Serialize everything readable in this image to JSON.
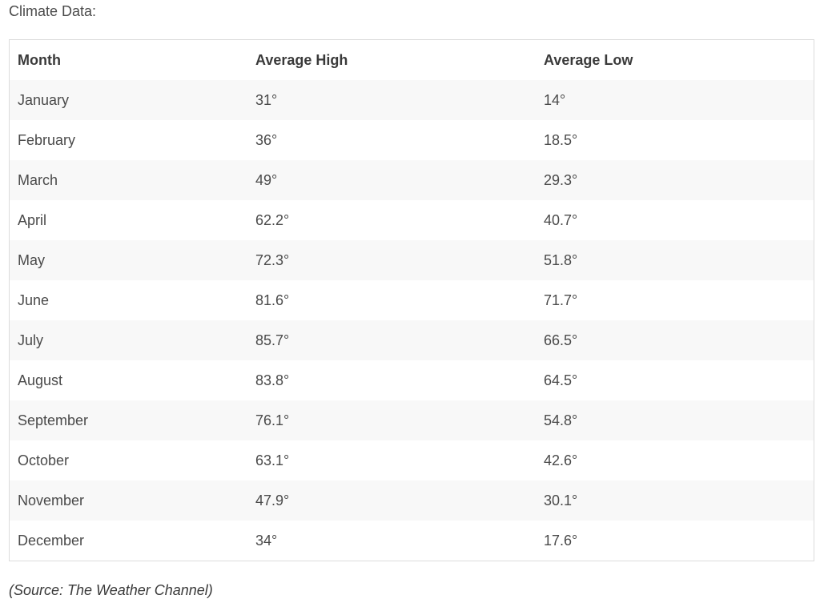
{
  "intro_text": "Climate Data:",
  "table": {
    "headers": [
      "Month",
      "Average High",
      "Average Low"
    ],
    "rows": [
      [
        "January",
        "31°",
        "14°"
      ],
      [
        "February",
        "36°",
        "18.5°"
      ],
      [
        "March",
        "49°",
        "29.3°"
      ],
      [
        "April",
        "62.2°",
        "40.7°"
      ],
      [
        "May",
        "72.3°",
        "51.8°"
      ],
      [
        "June",
        "81.6°",
        "71.7°"
      ],
      [
        "July",
        "85.7°",
        "66.5°"
      ],
      [
        "August",
        "83.8°",
        "64.5°"
      ],
      [
        "September",
        "76.1°",
        "54.8°"
      ],
      [
        "October",
        "63.1°",
        "42.6°"
      ],
      [
        "November",
        "47.9°",
        "30.1°"
      ],
      [
        "December",
        "34°",
        "17.6°"
      ]
    ]
  },
  "source_text": "(Source: The Weather Channel)",
  "colors": {
    "text": "#4a4a4a",
    "header_text": "#3a3a3a",
    "stripe": "#f8f8f8",
    "border": "#dcdcdc"
  }
}
